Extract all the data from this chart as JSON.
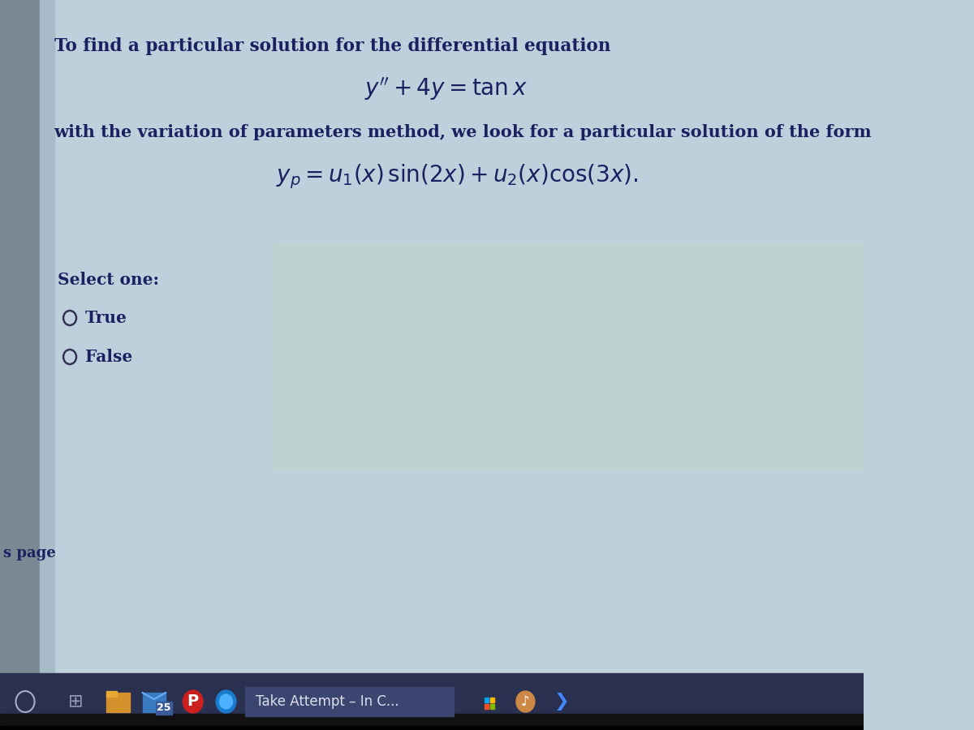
{
  "bg_main": "#bdd0db",
  "bg_left_strip": "#9aabb8",
  "bg_left_dark": "#7a8a95",
  "taskbar_color": "#2a3050",
  "taskbar_highlight": "#3a4570",
  "text_color": "#1a2060",
  "title_text": "To find a particular solution for the differential equation",
  "equation1": "$y'' + 4y = \\tan x$",
  "body_text": "with the variation of parameters method, we look for a particular solution of the form",
  "equation2": "$y_p = u_1(x)\\,\\sin(2x) + u_2(x)\\cos(3x).$",
  "select_text": "Select one:",
  "option1": "True",
  "option2": "False",
  "footer_text": "s page",
  "taskbar_text": "Take Attempt – In C...",
  "taskbar_label": "25",
  "circle_color": "#333355",
  "bottom_black": "#111111"
}
